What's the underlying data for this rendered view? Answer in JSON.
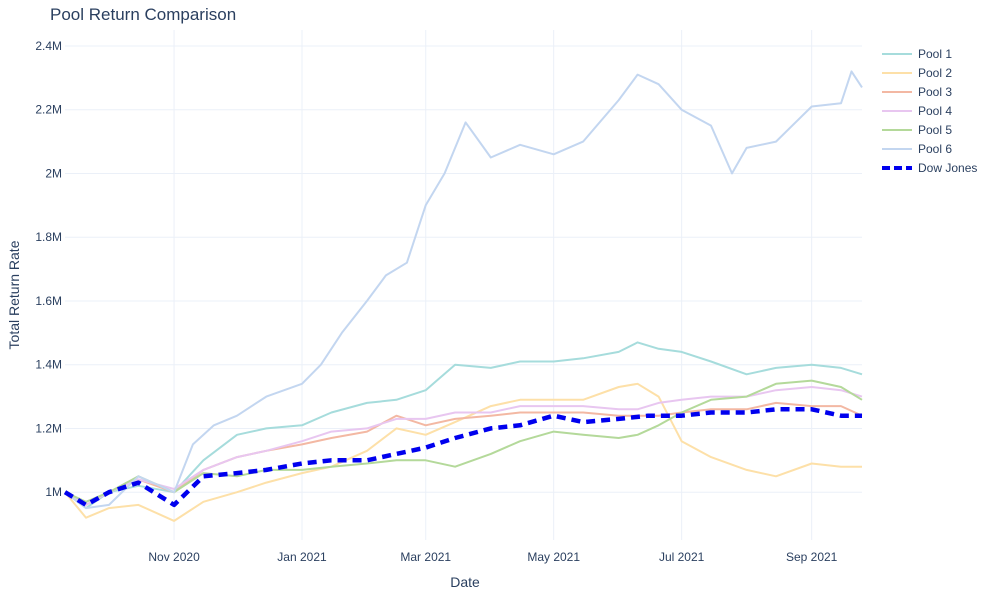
{
  "chart_data": {
    "type": "line",
    "title": "Pool Return Comparison",
    "xlabel": "Date",
    "ylabel": "Total Return Rate",
    "x_range": [
      "2020-09-10",
      "2021-09-25"
    ],
    "ylim": [
      850000,
      2450000
    ],
    "x_ticks": [
      {
        "date": "2020-11-01",
        "label": "Nov 2020"
      },
      {
        "date": "2021-01-01",
        "label": "Jan 2021"
      },
      {
        "date": "2021-03-01",
        "label": "Mar 2021"
      },
      {
        "date": "2021-05-01",
        "label": "May 2021"
      },
      {
        "date": "2021-07-01",
        "label": "Jul 2021"
      },
      {
        "date": "2021-09-01",
        "label": "Sep 2021"
      }
    ],
    "y_ticks": [
      {
        "value": 1000000,
        "label": "1M"
      },
      {
        "value": 1200000,
        "label": "1.2M"
      },
      {
        "value": 1400000,
        "label": "1.4M"
      },
      {
        "value": 1600000,
        "label": "1.6M"
      },
      {
        "value": 1800000,
        "label": "1.8M"
      },
      {
        "value": 2000000,
        "label": "2M"
      },
      {
        "value": 2200000,
        "label": "2.2M"
      },
      {
        "value": 2400000,
        "label": "2.4M"
      }
    ],
    "grid": true,
    "legend_position": "top-right",
    "series": [
      {
        "name": "Pool 1",
        "color": "#a6dcdc",
        "dash": false,
        "width": 2,
        "points": [
          [
            "2020-09-10",
            1000000
          ],
          [
            "2020-09-20",
            950000
          ],
          [
            "2020-10-01",
            1000000
          ],
          [
            "2020-10-15",
            1020000
          ],
          [
            "2020-11-01",
            1000000
          ],
          [
            "2020-11-15",
            1100000
          ],
          [
            "2020-12-01",
            1180000
          ],
          [
            "2020-12-15",
            1200000
          ],
          [
            "2021-01-01",
            1210000
          ],
          [
            "2021-01-15",
            1250000
          ],
          [
            "2021-02-01",
            1280000
          ],
          [
            "2021-02-15",
            1290000
          ],
          [
            "2021-03-01",
            1320000
          ],
          [
            "2021-03-15",
            1400000
          ],
          [
            "2021-04-01",
            1390000
          ],
          [
            "2021-04-15",
            1410000
          ],
          [
            "2021-05-01",
            1410000
          ],
          [
            "2021-05-15",
            1420000
          ],
          [
            "2021-06-01",
            1440000
          ],
          [
            "2021-06-10",
            1470000
          ],
          [
            "2021-06-20",
            1450000
          ],
          [
            "2021-07-01",
            1440000
          ],
          [
            "2021-07-15",
            1410000
          ],
          [
            "2021-08-01",
            1370000
          ],
          [
            "2021-08-15",
            1390000
          ],
          [
            "2021-09-01",
            1400000
          ],
          [
            "2021-09-15",
            1390000
          ],
          [
            "2021-09-25",
            1370000
          ]
        ]
      },
      {
        "name": "Pool 2",
        "color": "#fde0a8",
        "dash": false,
        "width": 2,
        "points": [
          [
            "2020-09-10",
            1000000
          ],
          [
            "2020-09-20",
            920000
          ],
          [
            "2020-10-01",
            950000
          ],
          [
            "2020-10-15",
            960000
          ],
          [
            "2020-11-01",
            910000
          ],
          [
            "2020-11-15",
            970000
          ],
          [
            "2020-12-01",
            1000000
          ],
          [
            "2020-12-15",
            1030000
          ],
          [
            "2021-01-01",
            1060000
          ],
          [
            "2021-01-15",
            1080000
          ],
          [
            "2021-02-01",
            1130000
          ],
          [
            "2021-02-15",
            1200000
          ],
          [
            "2021-03-01",
            1180000
          ],
          [
            "2021-03-15",
            1220000
          ],
          [
            "2021-04-01",
            1270000
          ],
          [
            "2021-04-15",
            1290000
          ],
          [
            "2021-05-01",
            1290000
          ],
          [
            "2021-05-15",
            1290000
          ],
          [
            "2021-06-01",
            1330000
          ],
          [
            "2021-06-10",
            1340000
          ],
          [
            "2021-06-20",
            1300000
          ],
          [
            "2021-07-01",
            1160000
          ],
          [
            "2021-07-15",
            1110000
          ],
          [
            "2021-08-01",
            1070000
          ],
          [
            "2021-08-15",
            1050000
          ],
          [
            "2021-09-01",
            1090000
          ],
          [
            "2021-09-15",
            1080000
          ],
          [
            "2021-09-25",
            1080000
          ]
        ]
      },
      {
        "name": "Pool 3",
        "color": "#f3b8a3",
        "dash": false,
        "width": 2,
        "points": [
          [
            "2020-09-10",
            1000000
          ],
          [
            "2020-09-20",
            960000
          ],
          [
            "2020-10-01",
            1000000
          ],
          [
            "2020-10-15",
            1040000
          ],
          [
            "2020-11-01",
            1000000
          ],
          [
            "2020-11-15",
            1070000
          ],
          [
            "2020-12-01",
            1110000
          ],
          [
            "2020-12-15",
            1130000
          ],
          [
            "2021-01-01",
            1150000
          ],
          [
            "2021-01-15",
            1170000
          ],
          [
            "2021-02-01",
            1190000
          ],
          [
            "2021-02-15",
            1240000
          ],
          [
            "2021-03-01",
            1210000
          ],
          [
            "2021-03-15",
            1230000
          ],
          [
            "2021-04-01",
            1240000
          ],
          [
            "2021-04-15",
            1250000
          ],
          [
            "2021-05-01",
            1250000
          ],
          [
            "2021-05-15",
            1250000
          ],
          [
            "2021-06-01",
            1240000
          ],
          [
            "2021-06-10",
            1240000
          ],
          [
            "2021-06-20",
            1240000
          ],
          [
            "2021-07-01",
            1250000
          ],
          [
            "2021-07-15",
            1260000
          ],
          [
            "2021-08-01",
            1260000
          ],
          [
            "2021-08-15",
            1280000
          ],
          [
            "2021-09-01",
            1270000
          ],
          [
            "2021-09-15",
            1270000
          ],
          [
            "2021-09-25",
            1240000
          ]
        ]
      },
      {
        "name": "Pool 4",
        "color": "#e8c6f0",
        "dash": false,
        "width": 2,
        "points": [
          [
            "2020-09-10",
            1000000
          ],
          [
            "2020-09-20",
            960000
          ],
          [
            "2020-10-01",
            1000000
          ],
          [
            "2020-10-15",
            1040000
          ],
          [
            "2020-11-01",
            1010000
          ],
          [
            "2020-11-15",
            1070000
          ],
          [
            "2020-12-01",
            1110000
          ],
          [
            "2020-12-15",
            1130000
          ],
          [
            "2021-01-01",
            1160000
          ],
          [
            "2021-01-15",
            1190000
          ],
          [
            "2021-02-01",
            1200000
          ],
          [
            "2021-02-15",
            1230000
          ],
          [
            "2021-03-01",
            1230000
          ],
          [
            "2021-03-15",
            1250000
          ],
          [
            "2021-04-01",
            1250000
          ],
          [
            "2021-04-15",
            1270000
          ],
          [
            "2021-05-01",
            1270000
          ],
          [
            "2021-05-15",
            1270000
          ],
          [
            "2021-06-01",
            1260000
          ],
          [
            "2021-06-10",
            1260000
          ],
          [
            "2021-06-20",
            1280000
          ],
          [
            "2021-07-01",
            1290000
          ],
          [
            "2021-07-15",
            1300000
          ],
          [
            "2021-08-01",
            1300000
          ],
          [
            "2021-08-15",
            1320000
          ],
          [
            "2021-09-01",
            1330000
          ],
          [
            "2021-09-15",
            1320000
          ],
          [
            "2021-09-25",
            1300000
          ]
        ]
      },
      {
        "name": "Pool 5",
        "color": "#b4d99a",
        "dash": false,
        "width": 2,
        "points": [
          [
            "2020-09-10",
            1000000
          ],
          [
            "2020-09-20",
            970000
          ],
          [
            "2020-10-01",
            1000000
          ],
          [
            "2020-10-15",
            1050000
          ],
          [
            "2020-11-01",
            1000000
          ],
          [
            "2020-11-15",
            1060000
          ],
          [
            "2020-12-01",
            1050000
          ],
          [
            "2020-12-15",
            1070000
          ],
          [
            "2021-01-01",
            1070000
          ],
          [
            "2021-01-15",
            1080000
          ],
          [
            "2021-02-01",
            1090000
          ],
          [
            "2021-02-15",
            1100000
          ],
          [
            "2021-03-01",
            1100000
          ],
          [
            "2021-03-15",
            1080000
          ],
          [
            "2021-04-01",
            1120000
          ],
          [
            "2021-04-15",
            1160000
          ],
          [
            "2021-05-01",
            1190000
          ],
          [
            "2021-05-15",
            1180000
          ],
          [
            "2021-06-01",
            1170000
          ],
          [
            "2021-06-10",
            1180000
          ],
          [
            "2021-06-20",
            1210000
          ],
          [
            "2021-07-01",
            1250000
          ],
          [
            "2021-07-15",
            1290000
          ],
          [
            "2021-08-01",
            1300000
          ],
          [
            "2021-08-15",
            1340000
          ],
          [
            "2021-09-01",
            1350000
          ],
          [
            "2021-09-15",
            1330000
          ],
          [
            "2021-09-25",
            1290000
          ]
        ]
      },
      {
        "name": "Pool 6",
        "color": "#c3d6f0",
        "dash": false,
        "width": 2,
        "points": [
          [
            "2020-09-10",
            1000000
          ],
          [
            "2020-09-20",
            950000
          ],
          [
            "2020-10-01",
            960000
          ],
          [
            "2020-10-15",
            1050000
          ],
          [
            "2020-11-01",
            1000000
          ],
          [
            "2020-11-10",
            1150000
          ],
          [
            "2020-11-20",
            1210000
          ],
          [
            "2020-12-01",
            1240000
          ],
          [
            "2020-12-15",
            1300000
          ],
          [
            "2021-01-01",
            1340000
          ],
          [
            "2021-01-10",
            1400000
          ],
          [
            "2021-01-20",
            1500000
          ],
          [
            "2021-02-01",
            1600000
          ],
          [
            "2021-02-10",
            1680000
          ],
          [
            "2021-02-20",
            1720000
          ],
          [
            "2021-03-01",
            1900000
          ],
          [
            "2021-03-10",
            2000000
          ],
          [
            "2021-03-20",
            2160000
          ],
          [
            "2021-04-01",
            2050000
          ],
          [
            "2021-04-15",
            2090000
          ],
          [
            "2021-05-01",
            2060000
          ],
          [
            "2021-05-15",
            2100000
          ],
          [
            "2021-06-01",
            2230000
          ],
          [
            "2021-06-10",
            2310000
          ],
          [
            "2021-06-20",
            2280000
          ],
          [
            "2021-07-01",
            2200000
          ],
          [
            "2021-07-15",
            2150000
          ],
          [
            "2021-07-25",
            2000000
          ],
          [
            "2021-08-01",
            2080000
          ],
          [
            "2021-08-15",
            2100000
          ],
          [
            "2021-09-01",
            2210000
          ],
          [
            "2021-09-15",
            2220000
          ],
          [
            "2021-09-20",
            2320000
          ],
          [
            "2021-09-25",
            2270000
          ]
        ]
      },
      {
        "name": "Dow Jones",
        "color": "#0000ee",
        "dash": true,
        "width": 4.5,
        "points": [
          [
            "2020-09-10",
            1000000
          ],
          [
            "2020-09-20",
            960000
          ],
          [
            "2020-10-01",
            1000000
          ],
          [
            "2020-10-15",
            1030000
          ],
          [
            "2020-11-01",
            960000
          ],
          [
            "2020-11-15",
            1050000
          ],
          [
            "2020-12-01",
            1060000
          ],
          [
            "2020-12-15",
            1070000
          ],
          [
            "2021-01-01",
            1090000
          ],
          [
            "2021-01-15",
            1100000
          ],
          [
            "2021-02-01",
            1100000
          ],
          [
            "2021-02-15",
            1120000
          ],
          [
            "2021-03-01",
            1140000
          ],
          [
            "2021-03-15",
            1170000
          ],
          [
            "2021-04-01",
            1200000
          ],
          [
            "2021-04-15",
            1210000
          ],
          [
            "2021-05-01",
            1240000
          ],
          [
            "2021-05-15",
            1220000
          ],
          [
            "2021-06-01",
            1230000
          ],
          [
            "2021-06-15",
            1240000
          ],
          [
            "2021-07-01",
            1240000
          ],
          [
            "2021-07-15",
            1250000
          ],
          [
            "2021-08-01",
            1250000
          ],
          [
            "2021-08-15",
            1260000
          ],
          [
            "2021-09-01",
            1260000
          ],
          [
            "2021-09-15",
            1240000
          ],
          [
            "2021-09-25",
            1240000
          ]
        ]
      }
    ]
  }
}
